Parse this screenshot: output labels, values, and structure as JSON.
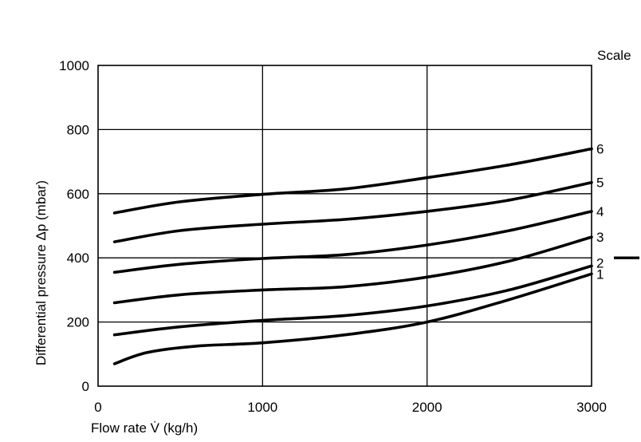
{
  "chart_data": {
    "type": "line",
    "xlabel": "Flow rate V̇ (kg/h)",
    "ylabel": "Differential pressure Δp (mbar)",
    "legend_title": "Scale",
    "xlim": [
      0,
      3000
    ],
    "ylim": [
      0,
      1000
    ],
    "x_ticks": [
      "0",
      "1000",
      "2000",
      "3000"
    ],
    "y_ticks": [
      "0",
      "200",
      "400",
      "600",
      "800",
      "1000"
    ],
    "grid": true,
    "series": [
      {
        "name": "1",
        "x": [
          100,
          300,
          600,
          1000,
          1500,
          2000,
          2500,
          3000
        ],
        "y": [
          70,
          105,
          125,
          135,
          160,
          200,
          270,
          350
        ]
      },
      {
        "name": "2",
        "x": [
          100,
          500,
          1000,
          1500,
          2000,
          2500,
          3000
        ],
        "y": [
          160,
          185,
          205,
          220,
          250,
          300,
          375
        ]
      },
      {
        "name": "3",
        "x": [
          100,
          500,
          1000,
          1500,
          2000,
          2500,
          3000
        ],
        "y": [
          260,
          285,
          300,
          310,
          340,
          390,
          465
        ]
      },
      {
        "name": "4",
        "x": [
          100,
          500,
          1000,
          1500,
          2000,
          2500,
          3000
        ],
        "y": [
          355,
          380,
          398,
          410,
          440,
          485,
          545
        ]
      },
      {
        "name": "5",
        "x": [
          100,
          500,
          1000,
          1500,
          2000,
          2500,
          3000
        ],
        "y": [
          450,
          485,
          505,
          520,
          545,
          580,
          635
        ]
      },
      {
        "name": "6",
        "x": [
          100,
          500,
          1000,
          1500,
          2000,
          2500,
          3000
        ],
        "y": [
          540,
          575,
          598,
          615,
          650,
          690,
          740
        ]
      }
    ],
    "marker_value": 400
  }
}
